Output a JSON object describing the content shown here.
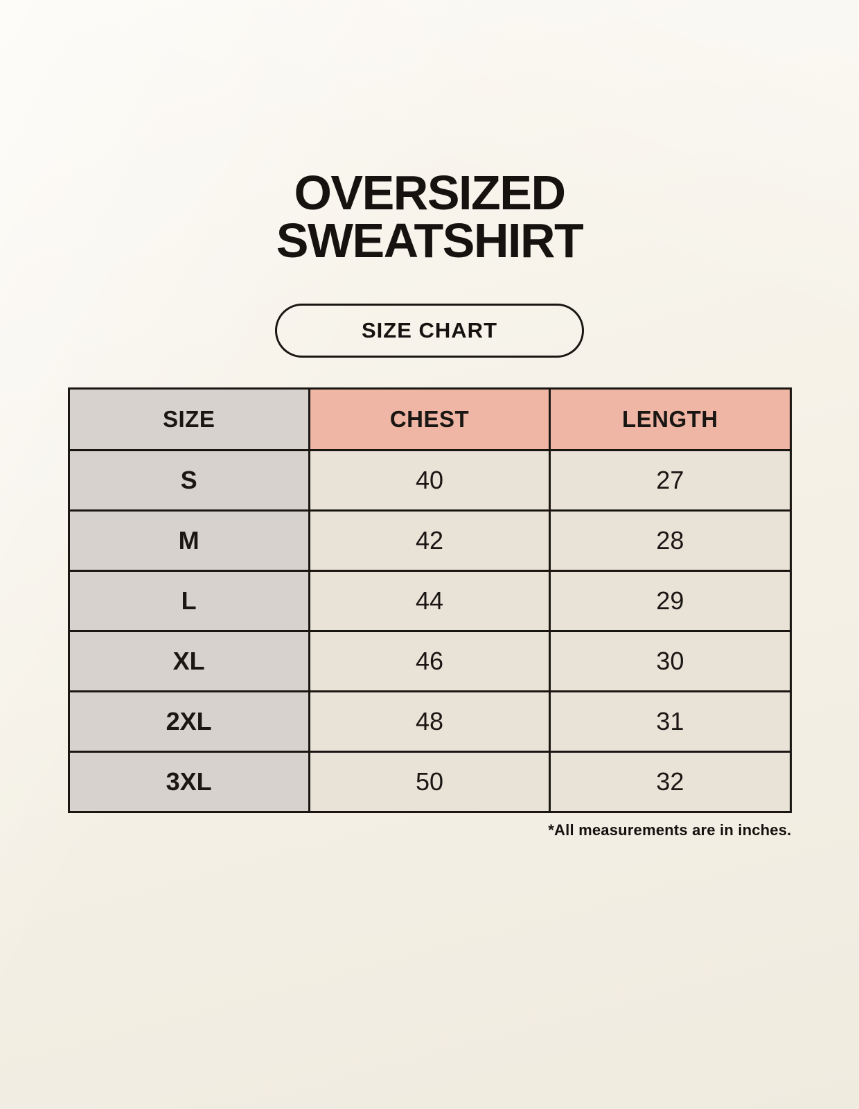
{
  "header": {
    "title_line1": "OVERSIZED",
    "title_line2": "SWEATSHIRT",
    "button_label": "SIZE CHART"
  },
  "chart_data": {
    "type": "table",
    "title": "OVERSIZED SWEATSHIRT",
    "subtitle": "SIZE CHART",
    "columns": [
      "SIZE",
      "CHEST",
      "LENGTH"
    ],
    "rows": [
      [
        "S",
        40,
        27
      ],
      [
        "M",
        42,
        28
      ],
      [
        "L",
        44,
        29
      ],
      [
        "XL",
        46,
        30
      ],
      [
        "2XL",
        48,
        31
      ],
      [
        "3XL",
        50,
        32
      ]
    ],
    "note": "*All measurements are in inches.",
    "units": "inches"
  },
  "colors": {
    "page_background": "#f5f1e7",
    "header_accent": "#efb6a5",
    "size_column": "#d8d2ce",
    "cell_background": "#e9e2d7",
    "border": "#1a1713",
    "text": "#151210"
  }
}
